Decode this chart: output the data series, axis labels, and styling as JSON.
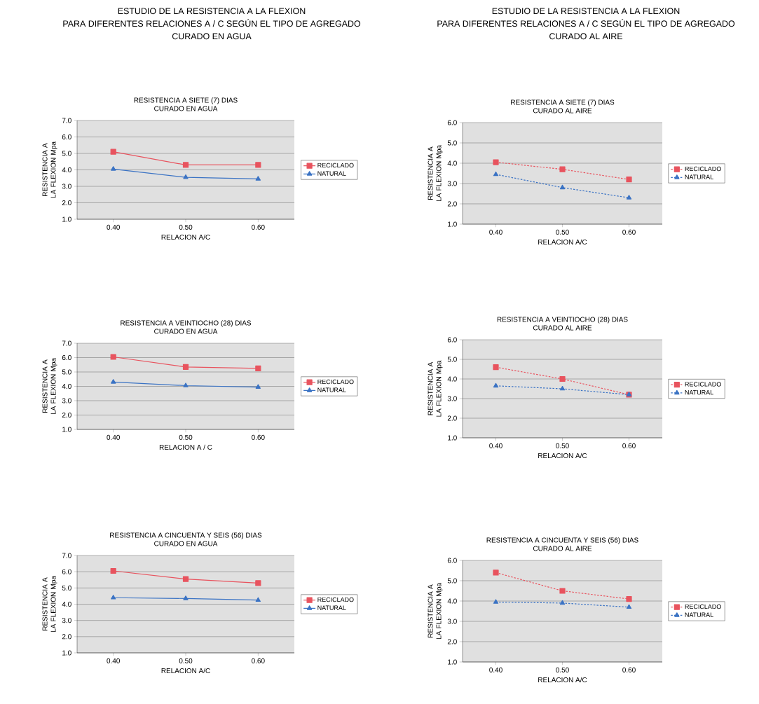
{
  "chart_data": [
    {
      "type": "line",
      "annotations": [
        "ESTUDIO DE LA RESISTENCIA A LA FLEXION",
        "PARA DIFERENTES RELACIONES A / C SEGÚN EL TIPO DE AGREGADO",
        "CURADO EN AGUA"
      ],
      "title": "RESISTENCIA A SIETE (7) DIAS",
      "subtitle": "CURADO EN AGUA",
      "xlabel": "RELACION A/C",
      "ylabel": "RESISTENCIA A LA FLEXION Mpa",
      "categories": [
        "0.40",
        "0.50",
        "0.60"
      ],
      "ylim": [
        1,
        7
      ],
      "yticks": [
        {
          "value": 1,
          "label": "1.0"
        },
        {
          "value": 2,
          "label": "2.0"
        },
        {
          "value": 3,
          "label": "3.0"
        },
        {
          "value": 4,
          "label": "4.0"
        },
        {
          "value": 5,
          "label": "5.0"
        },
        {
          "value": 6,
          "label": "6.0"
        },
        {
          "value": 7,
          "label": "7.0"
        }
      ],
      "grid": "y",
      "legend": "right",
      "line_style": "solid",
      "series": [
        {
          "name": "RECICLADO",
          "color": "#e8535e",
          "marker": "square",
          "values": [
            5.1,
            4.3,
            4.3
          ]
        },
        {
          "name": "NATURAL",
          "color": "#3b73c4",
          "marker": "triangle",
          "values": [
            4.05,
            3.55,
            3.45
          ]
        }
      ]
    },
    {
      "type": "line",
      "title": "RESISTENCIA A VEINTIOCHO (28) DIAS",
      "subtitle": "CURADO EN AGUA",
      "xlabel": "RELACION A / C",
      "ylabel": "RESISTENCIA A LA FLEXION Mpa",
      "categories": [
        "0.40",
        "0.50",
        "0.60"
      ],
      "ylim": [
        1,
        7
      ],
      "yticks": [
        {
          "value": 1,
          "label": "1.0"
        },
        {
          "value": 2,
          "label": "2.0"
        },
        {
          "value": 3,
          "label": "3.0"
        },
        {
          "value": 4,
          "label": "4.0"
        },
        {
          "value": 5,
          "label": "5.0"
        },
        {
          "value": 6,
          "label": "6.0"
        },
        {
          "value": 7,
          "label": "7.0"
        }
      ],
      "grid": "y",
      "legend": "right",
      "line_style": "solid",
      "series": [
        {
          "name": "RECICLADO",
          "color": "#e8535e",
          "marker": "square",
          "values": [
            6.05,
            5.35,
            5.25
          ]
        },
        {
          "name": "NATURAL",
          "color": "#3b73c4",
          "marker": "triangle",
          "values": [
            4.3,
            4.05,
            3.95
          ]
        }
      ]
    },
    {
      "type": "line",
      "title": "RESISTENCIA A CINCUENTA Y SEIS (56) DIAS",
      "subtitle": "CURADO EN AGUA",
      "xlabel": "RELACION A/C",
      "ylabel": "RESISTENCIA A LA FLEXION Mpa",
      "categories": [
        "0.40",
        "0.50",
        "0.60"
      ],
      "ylim": [
        1,
        7
      ],
      "yticks": [
        {
          "value": 1,
          "label": "1.0"
        },
        {
          "value": 2,
          "label": "2.0"
        },
        {
          "value": 3,
          "label": "3.0"
        },
        {
          "value": 4,
          "label": "4.0"
        },
        {
          "value": 5,
          "label": "5.0"
        },
        {
          "value": 6,
          "label": "6.0"
        },
        {
          "value": 7,
          "label": "7.0"
        }
      ],
      "grid": "y",
      "legend": "right",
      "line_style": "solid",
      "series": [
        {
          "name": "RECICLADO",
          "color": "#e8535e",
          "marker": "square",
          "values": [
            6.05,
            5.55,
            5.3
          ]
        },
        {
          "name": "NATURAL",
          "color": "#3b73c4",
          "marker": "triangle",
          "values": [
            4.4,
            4.35,
            4.25
          ]
        }
      ]
    },
    {
      "type": "line",
      "annotations": [
        "ESTUDIO DE LA RESISTENCIA A LA FLEXION",
        "PARA DIFERENTES RELACIONES A / C SEGÚN EL TIPO DE AGREGADO",
        "CURADO AL AIRE"
      ],
      "title": "RESISTENCIA A SIETE (7) DIAS",
      "subtitle": "CURADO AL AIRE",
      "xlabel": "RELACION A/C",
      "ylabel": "RESISTENCIA A LA FLEXION Mpa",
      "categories": [
        "0.40",
        "0.50",
        "0.60"
      ],
      "ylim": [
        1,
        6
      ],
      "yticks": [
        {
          "value": 1,
          "label": "1.0"
        },
        {
          "value": 2,
          "label": "2.0"
        },
        {
          "value": 3,
          "label": "3.0"
        },
        {
          "value": 4,
          "label": "4.0"
        },
        {
          "value": 5,
          "label": "5.0"
        },
        {
          "value": 6,
          "label": "6.0"
        }
      ],
      "grid": "y",
      "legend": "right",
      "line_style": "dashed",
      "series": [
        {
          "name": "RECICLADO",
          "color": "#e8535e",
          "marker": "square",
          "values": [
            4.05,
            3.7,
            3.2
          ]
        },
        {
          "name": "NATURAL",
          "color": "#3b73c4",
          "marker": "triangle",
          "values": [
            3.45,
            2.8,
            2.3
          ]
        }
      ]
    },
    {
      "type": "line",
      "title": "RESISTENCIA A VEINTIOCHO (28) DIAS",
      "subtitle": "CURADO AL AIRE",
      "xlabel": "RELACION A/C",
      "ylabel": "RESISTENCIA A LA FLEXION Mpa",
      "categories": [
        "0.40",
        "0.50",
        "0.60"
      ],
      "ylim": [
        1,
        6
      ],
      "yticks": [
        {
          "value": 1,
          "label": "1.0"
        },
        {
          "value": 2,
          "label": "2.0"
        },
        {
          "value": 3,
          "label": "3.0"
        },
        {
          "value": 4,
          "label": "4.0"
        },
        {
          "value": 5,
          "label": "5.0"
        },
        {
          "value": 6,
          "label": "6.0"
        }
      ],
      "grid": "y",
      "legend": "right",
      "line_style": "dashed",
      "series": [
        {
          "name": "RECICLADO",
          "color": "#e8535e",
          "marker": "square",
          "values": [
            4.6,
            4.0,
            3.2
          ]
        },
        {
          "name": "NATURAL",
          "color": "#3b73c4",
          "marker": "triangle",
          "values": [
            3.65,
            3.5,
            3.2
          ]
        }
      ]
    },
    {
      "type": "line",
      "title": "RESISTENCIA A CINCUENTA Y SEIS (56) DIAS",
      "subtitle": "CURADO AL AIRE",
      "xlabel": "RELACION A/C",
      "ylabel": "RESISTENCIA A LA FLEXION Mpa",
      "categories": [
        "0.40",
        "0.50",
        "0.60"
      ],
      "ylim": [
        1,
        6
      ],
      "yticks": [
        {
          "value": 1,
          "label": "1.0"
        },
        {
          "value": 2,
          "label": "2.0"
        },
        {
          "value": 3,
          "label": "3.0"
        },
        {
          "value": 4,
          "label": "4.0"
        },
        {
          "value": 5,
          "label": "5.0"
        },
        {
          "value": 6,
          "label": "6.0"
        }
      ],
      "grid": "y",
      "legend": "right",
      "line_style": "dashed",
      "series": [
        {
          "name": "RECICLADO",
          "color": "#e8535e",
          "marker": "square",
          "values": [
            5.4,
            4.5,
            4.1
          ]
        },
        {
          "name": "NATURAL",
          "color": "#3b73c4",
          "marker": "triangle",
          "values": [
            3.95,
            3.9,
            3.7
          ]
        }
      ]
    }
  ]
}
